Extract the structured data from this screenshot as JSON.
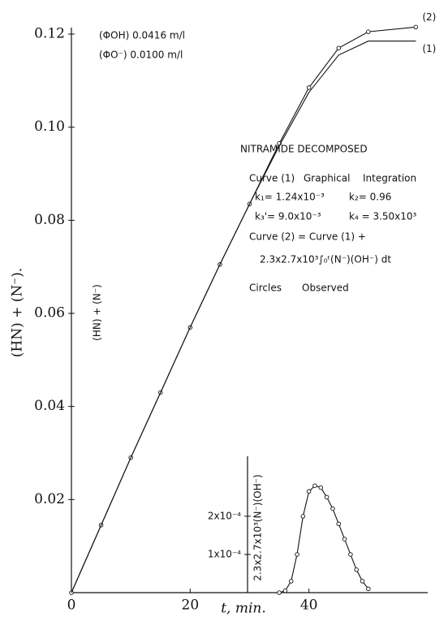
{
  "chart_data": [
    {
      "type": "line",
      "axis_label_y": "(HN) + (N⁻).",
      "axis_label_x": "t, min.",
      "annotations": [
        "(ΦOH) 0.0416 m/l",
        "(ΦO⁻) 0.0100 m/l",
        "NITRAMIDE DECOMPOSED",
        "Curve (1)",
        "Graphical",
        "Integration",
        "k₁= 1.24x10⁻³",
        "k₂= 0.96",
        "k₃'= 9.0x10⁻³",
        "k₄ = 3.50x10³",
        "Curve (2) = Curve (1) +",
        "2.3x2.7x10³∫₀ᵗ(N⁻)(OH⁻) dt",
        "Circles",
        "Observed",
        "(HN) + (N⁻)"
      ],
      "x": [
        0,
        5,
        10,
        15,
        20,
        25,
        30,
        35,
        40,
        45,
        50,
        58
      ],
      "series": [
        {
          "name": "(2)",
          "color": "#111111",
          "markers": true,
          "values": [
            0,
            0.0145,
            0.029,
            0.043,
            0.057,
            0.0705,
            0.0835,
            0.0965,
            0.1085,
            0.117,
            0.1205,
            0.1215
          ]
        },
        {
          "name": "(1)",
          "color": "#111111",
          "markers": false,
          "values": [
            0,
            0.0145,
            0.029,
            0.043,
            0.057,
            0.0705,
            0.0835,
            0.096,
            0.1075,
            0.1155,
            0.1185,
            0.1185
          ]
        }
      ],
      "xlim": [
        0,
        60
      ],
      "xticks": [
        0,
        20,
        40
      ],
      "ylim": [
        0,
        0.12
      ],
      "yticks": [
        0.02,
        0.04,
        0.06,
        0.08,
        {
          "value": 0.1,
          "label": "0.10"
        },
        0.12
      ]
    },
    {
      "type": "line",
      "axis_label_y": "2.3x2.7x10³(N⁻)(OH⁻)",
      "x": [
        35,
        36,
        37,
        38,
        39,
        40,
        41,
        42,
        43,
        44,
        45,
        46,
        47,
        48,
        49,
        50
      ],
      "series": [
        {
          "color": "#111111",
          "markers": true,
          "values": [
            0,
            5e-06,
            3e-05,
            0.0001,
            0.0002,
            0.000265,
            0.00028,
            0.000275,
            0.00025,
            0.00022,
            0.00018,
            0.00014,
            0.0001,
            6e-05,
            3e-05,
            1e-05
          ]
        }
      ],
      "xlim": [
        0,
        60
      ],
      "ylim": [
        0,
        0.00034
      ],
      "yticks": [
        {
          "value": 0.0001,
          "label": "1x10⁻⁴"
        },
        {
          "value": 0.0002,
          "label": "2x10⁻⁴"
        }
      ]
    }
  ]
}
